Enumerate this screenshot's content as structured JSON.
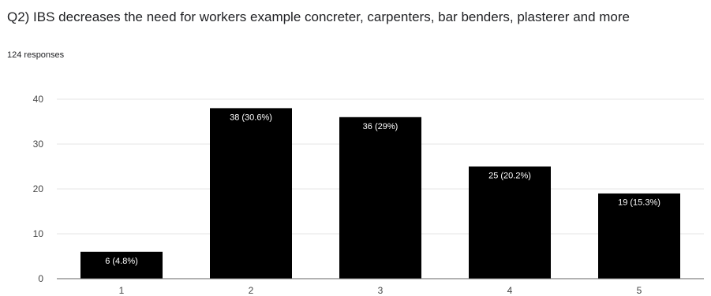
{
  "question": "Q2) IBS decreases the need for workers example concreter, carpenters, bar benders, plasterer and more",
  "responses": "124 responses",
  "colors": {
    "bar": "#000000",
    "grid": "#e5e5e5",
    "axis": "#666666",
    "label": "#ffffff"
  },
  "chart_data": {
    "type": "bar",
    "title": "Q2) IBS decreases the need for workers example concreter, carpenters, bar benders, plasterer and more",
    "subtitle": "124 responses",
    "categories": [
      "1",
      "2",
      "3",
      "4",
      "5"
    ],
    "values": [
      6,
      38,
      36,
      25,
      19
    ],
    "data_labels": [
      "6 (4.8%)",
      "38 (30.6%)",
      "36 (29%)",
      "25 (20.2%)",
      "19 (15.3%)"
    ],
    "yticks": [
      0,
      10,
      20,
      30,
      40
    ],
    "ylim": [
      0,
      40
    ],
    "grid": true,
    "xlabel": "",
    "ylabel": ""
  }
}
